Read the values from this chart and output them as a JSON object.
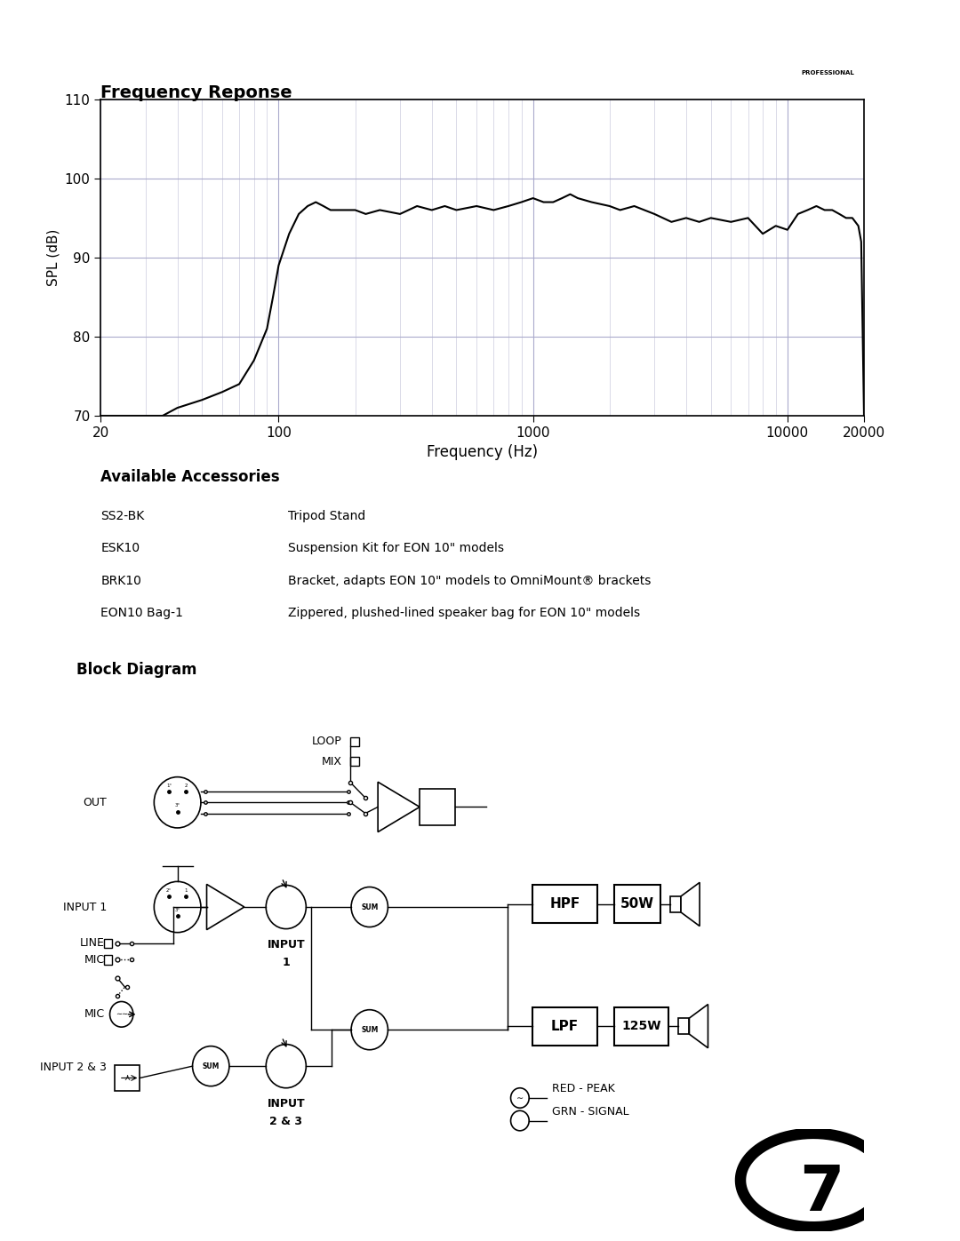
{
  "page_bg": "#ffffff",
  "title_freq": "Frequency Reponse",
  "freq_xlabel": "Frequency (Hz)",
  "freq_ylabel": "SPL (dB)",
  "freq_xlim": [
    20,
    20000
  ],
  "freq_ylim": [
    70,
    110
  ],
  "freq_yticks": [
    70,
    80,
    90,
    100,
    110
  ],
  "freq_xtick_labels": [
    "20",
    "100",
    "1000",
    "10000",
    "20000"
  ],
  "freq_xtick_vals": [
    20,
    100,
    1000,
    10000,
    20000
  ],
  "grid_color_major": "#aaaacc",
  "grid_color_minor": "#ccccdd",
  "curve_color": "#000000",
  "accessories_title": "Available Accessories",
  "accessories": [
    [
      "SS2-BK",
      "Tripod Stand"
    ],
    [
      "ESK10",
      "Suspension Kit for EON 10\" models"
    ],
    [
      "BRK10",
      "Bracket, adapts EON 10\" models to OmniMount® brackets"
    ],
    [
      "EON10 Bag-1",
      "Zippered, plushed-lined speaker bag for EON 10\" models"
    ]
  ],
  "block_title": "Block Diagram",
  "page_number": "7",
  "line_color": "#000000",
  "freq_data_x": [
    20,
    25,
    30,
    35,
    40,
    50,
    60,
    70,
    80,
    90,
    95,
    100,
    110,
    120,
    130,
    140,
    150,
    160,
    180,
    200,
    220,
    250,
    300,
    350,
    400,
    450,
    500,
    600,
    700,
    800,
    900,
    1000,
    1100,
    1200,
    1300,
    1400,
    1500,
    1700,
    2000,
    2200,
    2500,
    3000,
    3500,
    4000,
    4500,
    5000,
    6000,
    7000,
    8000,
    9000,
    10000,
    11000,
    12000,
    13000,
    14000,
    15000,
    16000,
    17000,
    18000,
    19000,
    19500,
    20000
  ],
  "freq_data_y": [
    70,
    70,
    70,
    70,
    71,
    72,
    73,
    74,
    77,
    81,
    85,
    89,
    93,
    95.5,
    96.5,
    97,
    96.5,
    96,
    96,
    96,
    95.5,
    96,
    95.5,
    96.5,
    96,
    96.5,
    96,
    96.5,
    96,
    96.5,
    97,
    97.5,
    97,
    97,
    97.5,
    98,
    97.5,
    97,
    96.5,
    96,
    96.5,
    95.5,
    94.5,
    95,
    94.5,
    95,
    94.5,
    95,
    93,
    94,
    93.5,
    95.5,
    96,
    96.5,
    96,
    96,
    95.5,
    95,
    95,
    94,
    92,
    70
  ]
}
